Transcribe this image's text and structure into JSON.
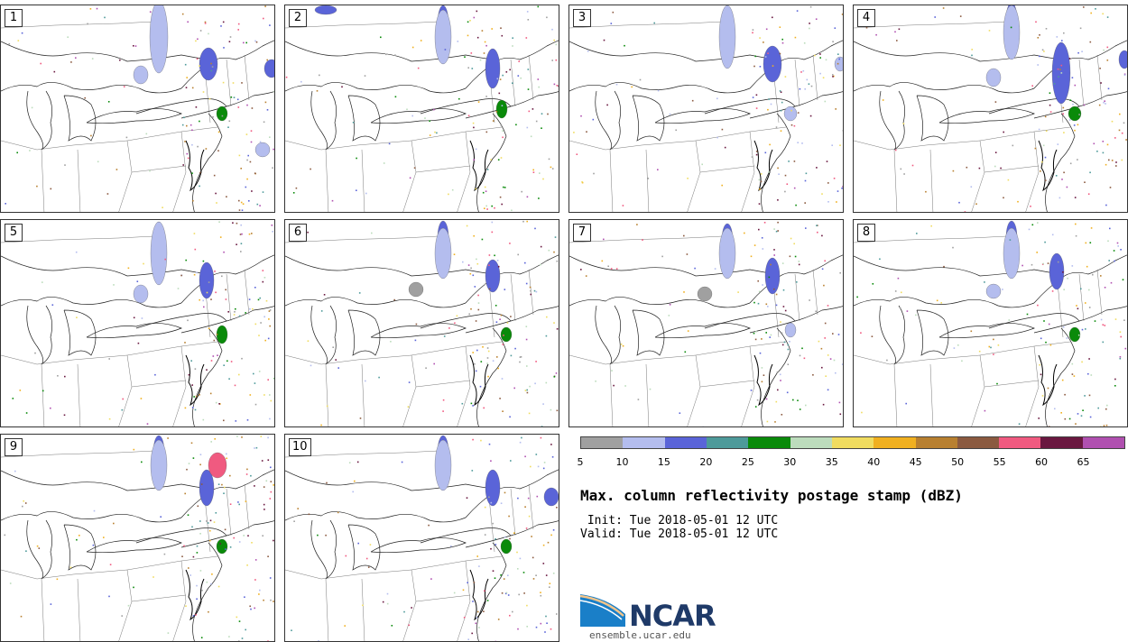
{
  "title": "Max. column reflectivity postage stamp (dBZ)",
  "init_line": " Init: Tue 2018-05-01 12 UTC",
  "valid_line": "Valid: Tue 2018-05-01 12 UTC",
  "logo_text": "NCAR",
  "site": "ensemble.ucar.edu",
  "members": [
    "1",
    "2",
    "3",
    "4",
    "5",
    "6",
    "7",
    "8",
    "9",
    "10"
  ],
  "colorbar": {
    "ticks": [
      "5",
      "10",
      "15",
      "20",
      "25",
      "30",
      "35",
      "40",
      "45",
      "50",
      "55",
      "60",
      "65"
    ],
    "colors": [
      "#a0a0a0",
      "#b4bdee",
      "#5a64d8",
      "#4e9a9a",
      "#0a8a0a",
      "#bcdcbc",
      "#f0dc60",
      "#f0b020",
      "#b88030",
      "#8b5a40",
      "#f05a80",
      "#6a1840",
      "#b050b0"
    ]
  }
}
